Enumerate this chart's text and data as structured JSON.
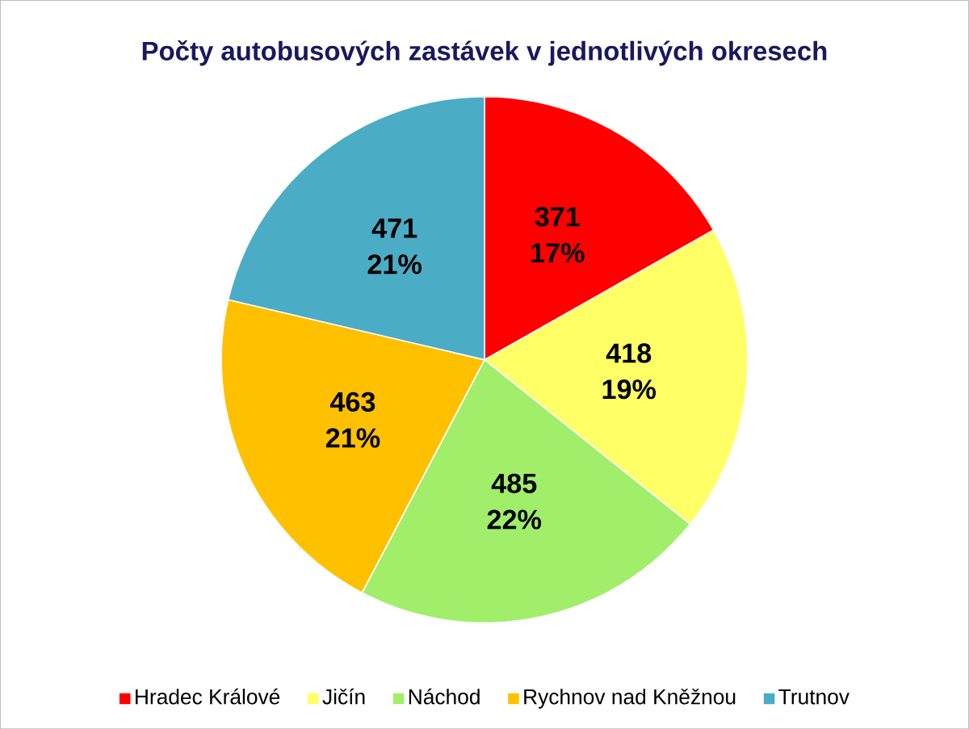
{
  "chart_data": {
    "type": "pie",
    "title": "Počty autobusových zastávek v jednotlivých okresech",
    "categories": [
      "Hradec Králové",
      "Jičín",
      "Náchod",
      "Rychnov nad Kněžnou",
      "Trutnov"
    ],
    "values": [
      371,
      418,
      485,
      463,
      471
    ],
    "colors": [
      "#ff0000",
      "#ffff66",
      "#a0ee6a",
      "#ffc000",
      "#4bacc6"
    ],
    "value_labels": [
      "371 17%",
      "418 19%",
      "485 22%",
      "463 21%",
      "471 21%"
    ],
    "legend": "bottom"
  }
}
